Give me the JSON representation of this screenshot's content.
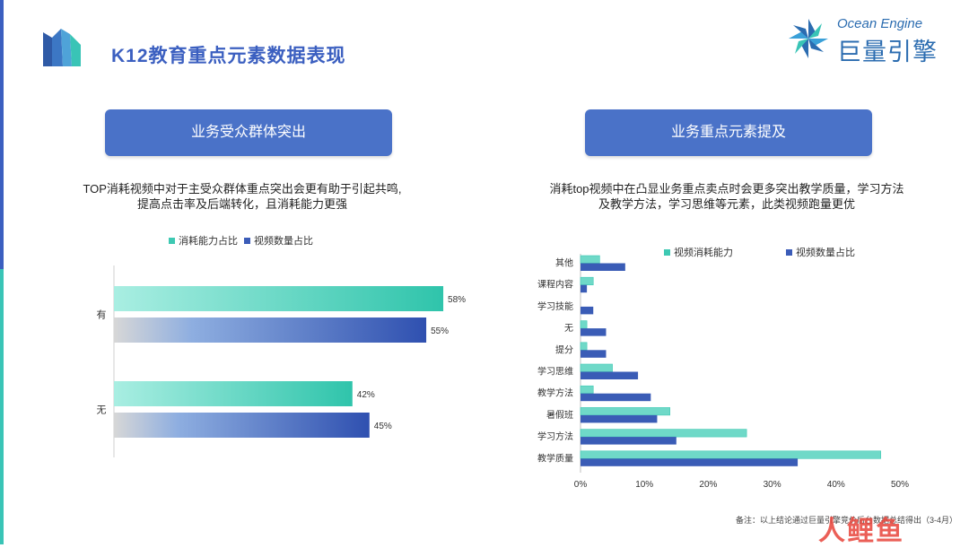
{
  "page": {
    "title": "K12教育重点元素数据表现",
    "brand_en": "Ocean Engine",
    "brand_cn": "巨量引擎",
    "footnote": "备注：以上结论通过巨量引擎竞价后台数据总结得出（3-4月）",
    "watermark": "人鲤鱼"
  },
  "left": {
    "button": "业务受众群体突出",
    "desc_line1": "TOP消耗视频中对于主受众群体重点突出会更有助于引起共鸣,",
    "desc_line2": "提高点击率及后端转化，且消耗能力更强"
  },
  "right": {
    "button": "业务重点元素提及",
    "desc_line1": "消耗top视频中在凸显业务重点卖点时会更多突出教学质量，学习方法",
    "desc_line2": "及教学方法，学习思维等元素，此类视频跑量更优"
  },
  "colors": {
    "teal": "#3ec9b3",
    "blue": "#3b5cb8",
    "accent": "#3b5fc0"
  },
  "chart_data": [
    {
      "type": "bar",
      "orientation": "horizontal",
      "categories": [
        "有",
        "无"
      ],
      "series": [
        {
          "name": "消耗能力占比",
          "values": [
            58,
            42
          ],
          "labels": [
            "58%",
            "42%"
          ]
        },
        {
          "name": "视频数量占比",
          "values": [
            55,
            45
          ],
          "labels": [
            "55%",
            "45%"
          ]
        }
      ],
      "xlim": [
        0,
        70
      ],
      "legend": "top"
    },
    {
      "type": "bar",
      "orientation": "horizontal",
      "categories": [
        "其他",
        "课程内容",
        "学习技能",
        "无",
        "提分",
        "学习思维",
        "教学方法",
        "暑假班",
        "学习方法",
        "教学质量"
      ],
      "series": [
        {
          "name": "视频消耗能力",
          "values": [
            3,
            2,
            0,
            1,
            1,
            5,
            2,
            14,
            26,
            47
          ]
        },
        {
          "name": "视频数量占比",
          "values": [
            7,
            1,
            2,
            4,
            4,
            9,
            11,
            12,
            15,
            34
          ]
        }
      ],
      "xticks": [
        "0%",
        "10%",
        "20%",
        "30%",
        "40%",
        "50%"
      ],
      "xlim": [
        0,
        50
      ],
      "legend": "top"
    }
  ]
}
